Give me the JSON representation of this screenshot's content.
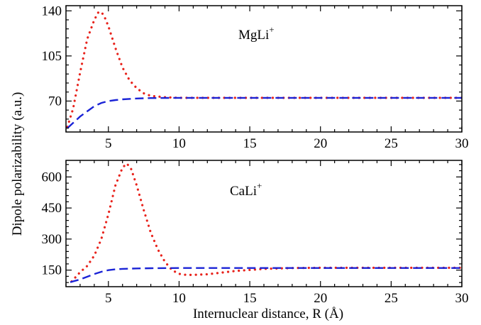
{
  "figure": {
    "ylabel": "Dipole polarizability (a.u.)",
    "xlabel": "Internuclear distance, R (Å)"
  },
  "chart_data": [
    {
      "type": "line",
      "label": "MgLi",
      "label_sup": "+",
      "xlim": [
        2,
        30
      ],
      "ylim": [
        46,
        144
      ],
      "xticks": [
        5,
        10,
        15,
        20,
        25,
        30
      ],
      "yticks": [
        70,
        105,
        140
      ],
      "grid": false,
      "series": [
        {
          "style": "dotted",
          "color": "#e8231c",
          "x": [
            2.1,
            2.5,
            3.0,
            3.5,
            4.0,
            4.3,
            4.5,
            4.7,
            5.0,
            5.5,
            6.0,
            6.5,
            7.0,
            7.5,
            8.0,
            9.0,
            10.0,
            12.0,
            15.0,
            20.0,
            25.0,
            30.0
          ],
          "y": [
            50,
            64,
            92,
            118,
            133,
            139,
            139,
            136,
            128,
            111,
            96,
            86,
            80,
            76,
            74,
            73,
            72.5,
            72.5,
            72.5,
            72.5,
            72.5,
            72.5
          ]
        },
        {
          "style": "dashed",
          "color": "#1a23d6",
          "x": [
            2.1,
            2.5,
            3.0,
            3.5,
            4.0,
            4.5,
            5.0,
            5.5,
            6.0,
            7.0,
            8.0,
            10.0,
            12.0,
            15.0,
            20.0,
            25.0,
            30.0
          ],
          "y": [
            49,
            53,
            58,
            62,
            66,
            68.5,
            70,
            70.8,
            71.3,
            72,
            72.3,
            72.5,
            72.5,
            72.5,
            72.5,
            72.5,
            72.5
          ]
        }
      ]
    },
    {
      "type": "line",
      "label": "CaLi",
      "label_sup": "+",
      "xlim": [
        2,
        30
      ],
      "ylim": [
        70,
        680
      ],
      "xticks": [
        5,
        10,
        15,
        20,
        25,
        30
      ],
      "yticks": [
        150,
        300,
        450,
        600
      ],
      "grid": false,
      "series": [
        {
          "style": "dotted",
          "color": "#e8231c",
          "x": [
            2.4,
            3.0,
            3.5,
            4.0,
            4.5,
            5.0,
            5.5,
            6.0,
            6.3,
            6.6,
            7.0,
            7.5,
            8.0,
            8.5,
            9.0,
            9.5,
            10.0,
            10.5,
            11.0,
            12.0,
            13.0,
            14.0,
            15.0,
            16.0,
            18.0,
            20.0,
            25.0,
            30.0
          ],
          "y": [
            95,
            140,
            170,
            220,
            300,
            420,
            560,
            645,
            665,
            640,
            560,
            440,
            330,
            250,
            190,
            150,
            132,
            127,
            127,
            130,
            138,
            146,
            151,
            156,
            160,
            161,
            161,
            161
          ]
        },
        {
          "style": "dashed",
          "color": "#1a23d6",
          "x": [
            2.3,
            3.0,
            3.5,
            4.0,
            4.5,
            5.0,
            5.5,
            6.0,
            7.0,
            8.0,
            10.0,
            12.0,
            15.0,
            20.0,
            25.0,
            30.0
          ],
          "y": [
            92,
            105,
            118,
            131,
            142,
            150,
            154,
            156,
            158,
            159,
            160,
            160,
            160,
            160,
            160,
            160
          ]
        }
      ]
    }
  ]
}
